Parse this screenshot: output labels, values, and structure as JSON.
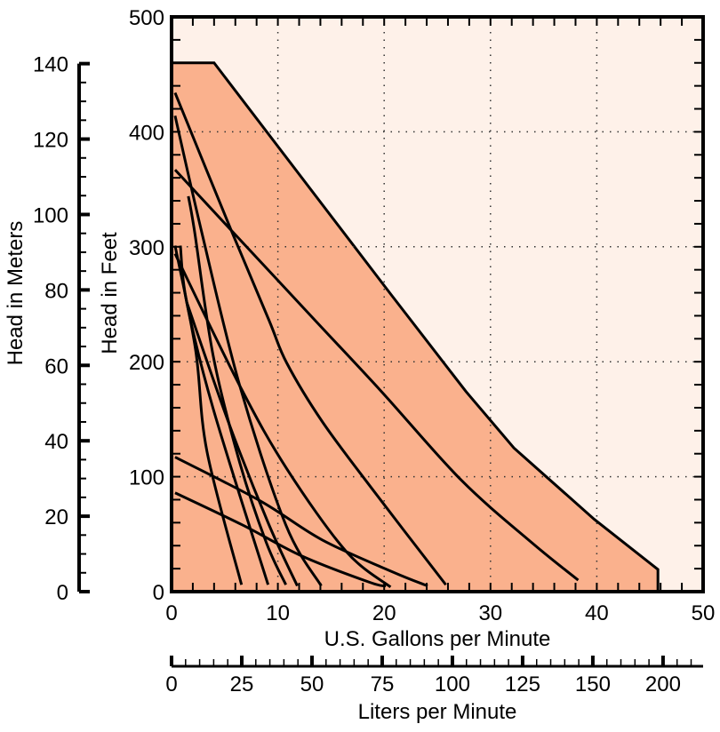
{
  "chart_data": {
    "type": "line",
    "xlabel": "U.S. Gallons per Minute",
    "ylabel": "Head in Feet",
    "y2label": "Head in Meters",
    "x2label": "Liters per Minute",
    "xlim": [
      0,
      50
    ],
    "ylim": [
      0,
      500
    ],
    "y2lim": [
      0,
      140
    ],
    "x_ticks": [
      "0",
      "10",
      "20",
      "30",
      "40",
      "50"
    ],
    "y_ticks": [
      "0",
      "100",
      "200",
      "300",
      "400",
      "500"
    ],
    "y2_ticks": [
      "0",
      "20",
      "40",
      "60",
      "80",
      "100",
      "120",
      "140"
    ],
    "x2_ticks": [
      "0",
      "25",
      "50",
      "75",
      "100",
      "125",
      "150",
      "200"
    ],
    "grid": true,
    "colors": {
      "envelope_fill": "#FAB18D",
      "background": "#FEF1E9",
      "line": "#000000"
    },
    "envelope": [
      [
        0,
        460
      ],
      [
        4,
        460
      ],
      [
        20.6,
        259
      ],
      [
        27.7,
        174
      ],
      [
        32.2,
        125
      ],
      [
        39.75,
        63
      ],
      [
        45.75,
        19.3
      ],
      [
        45.75,
        0
      ],
      [
        0,
        0
      ]
    ],
    "series": [
      {
        "points": [
          [
            0.33,
            367
          ],
          [
            5.75,
            313
          ],
          [
            13.5,
            236
          ],
          [
            19.75,
            174
          ],
          [
            27.25,
            97
          ],
          [
            33.9,
            42.5
          ],
          [
            38.25,
            10
          ]
        ]
      },
      {
        "points": [
          [
            0.33,
            434
          ],
          [
            5.67,
            313
          ],
          [
            9.17,
            236
          ],
          [
            10.83,
            199
          ],
          [
            14.17,
            148
          ],
          [
            18.9,
            89
          ],
          [
            25.8,
            6
          ]
        ]
      },
      {
        "points": [
          [
            0.33,
            414
          ],
          [
            2.83,
            313
          ],
          [
            6.42,
            179
          ],
          [
            10.75,
            58
          ],
          [
            14.08,
            5
          ]
        ]
      },
      {
        "points": [
          [
            1.58,
            344
          ],
          [
            2.17,
            313
          ],
          [
            3.92,
            205
          ],
          [
            6.42,
            112
          ],
          [
            8.92,
            42.5
          ],
          [
            10.75,
            6
          ]
        ]
      },
      {
        "points": [
          [
            0.33,
            301
          ],
          [
            2.25,
            211
          ],
          [
            3.33,
            122
          ],
          [
            6.58,
            6
          ]
        ]
      },
      {
        "points": [
          [
            0.83,
            301
          ],
          [
            1.42,
            252
          ],
          [
            3.92,
            159
          ],
          [
            9.08,
            6
          ]
        ]
      },
      {
        "points": [
          [
            1.42,
            252
          ],
          [
            5.33,
            148
          ],
          [
            9.08,
            60
          ],
          [
            11.83,
            5
          ]
        ]
      },
      {
        "points": [
          [
            0.33,
            294
          ],
          [
            6.42,
            179
          ],
          [
            10.83,
            107
          ],
          [
            16.42,
            35
          ],
          [
            20.6,
            4
          ]
        ]
      },
      {
        "points": [
          [
            0.33,
            117
          ],
          [
            8.33,
            79
          ],
          [
            14.17,
            45
          ],
          [
            20.83,
            17
          ],
          [
            24.08,
            5
          ]
        ]
      },
      {
        "points": [
          [
            0.33,
            86
          ],
          [
            6.67,
            58
          ],
          [
            12.25,
            31
          ],
          [
            18.67,
            8
          ],
          [
            20.17,
            5
          ]
        ]
      }
    ]
  }
}
